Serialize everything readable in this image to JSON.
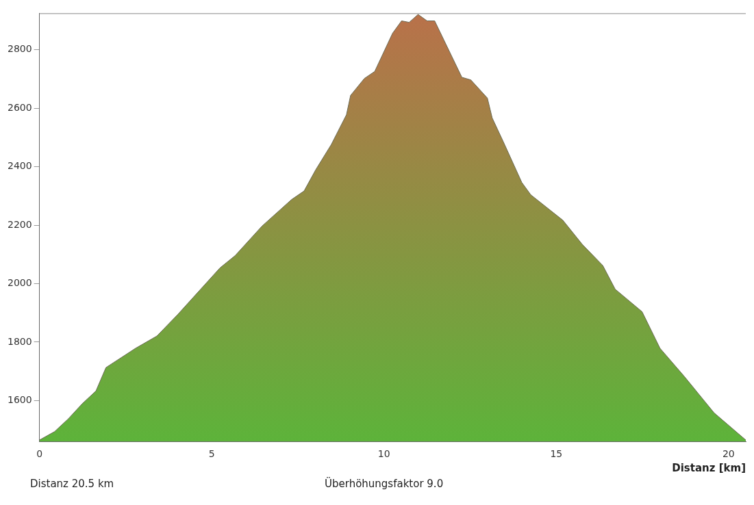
{
  "chart_data": {
    "type": "area",
    "xlabel": "Distanz [km]",
    "annotations": [
      "Distanz 20.5 km",
      "Überhöhungsfaktor 9.0"
    ],
    "x": [
      0,
      0.44,
      0.84,
      1.24,
      1.64,
      1.93,
      2.79,
      3.41,
      4.01,
      5.24,
      5.68,
      6.46,
      7.32,
      7.68,
      8.02,
      8.47,
      8.91,
      9.03,
      9.43,
      9.73,
      10.25,
      10.51,
      10.73,
      10.99,
      11.25,
      11.47,
      12.26,
      12.52,
      13.0,
      13.14,
      13.48,
      14.0,
      14.26,
      15.19,
      15.75,
      16.35,
      16.71,
      17.49,
      18.01,
      18.72,
      19.58,
      20.5
    ],
    "series": [
      {
        "color": "#5db33a",
        "values": [
          1465,
          1494,
          1538,
          1589,
          1633,
          1713,
          1779,
          1821,
          1894,
          2054,
          2096,
          2197,
          2288,
          2317,
          2390,
          2476,
          2578,
          2644,
          2702,
          2726,
          2857,
          2899,
          2894,
          2921,
          2899,
          2899,
          2706,
          2697,
          2635,
          2567,
          2481,
          2346,
          2304,
          2217,
          2135,
          2062,
          1981,
          1904,
          1779,
          1682,
          1558,
          1465
        ]
      }
    ],
    "xlim": [
      0,
      20.5
    ],
    "xticks": [
      0,
      5,
      10,
      15,
      20
    ],
    "ylim": [
      1460,
      2925
    ],
    "yticks": [
      1600,
      1800,
      2000,
      2200,
      2400,
      2600,
      2800
    ],
    "grid": false,
    "legend": false
  }
}
